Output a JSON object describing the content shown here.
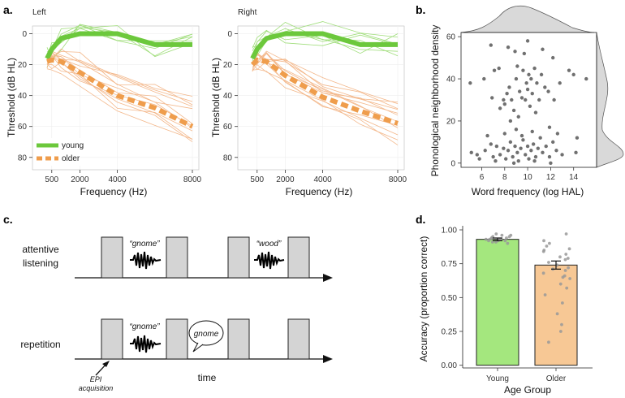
{
  "panels": {
    "a": {
      "letter": "a.",
      "ylabel": "Threshold (dB HL)",
      "xlabel": "Frequency (Hz)",
      "left_title": "Left",
      "right_title": "Right",
      "legend": [
        "young",
        "older"
      ]
    },
    "b": {
      "letter": "b.",
      "ylabel": "Phonological neighborhood density",
      "xlabel": "Word frequency (log HAL)"
    },
    "c": {
      "letter": "c.",
      "attentive_1": "attentive",
      "attentive_2": "listening",
      "repetition": "repetition",
      "word1": "“gnome”",
      "word2": "“wood”",
      "word3": "“gnome”",
      "bubble": "gnome",
      "epi_1": "EPI",
      "epi_2": "acquisition",
      "time": "time"
    },
    "d": {
      "letter": "d.",
      "ylabel": "Accuracy (proportion correct)",
      "xlabel": "Age Group"
    }
  },
  "colors": {
    "young": "#6cc83c",
    "older": "#ef9d4c",
    "young_bar": "#a4e77e",
    "older_bar": "#f7c895"
  },
  "chart_data": [
    {
      "id": "audiogram-left",
      "type": "line",
      "title": "Left",
      "xlabel": "Frequency (Hz)",
      "ylabel": "Threshold (dB HL)",
      "x": [
        250,
        500,
        1000,
        2000,
        4000,
        6000,
        8000
      ],
      "xticks": [
        500,
        2000,
        4000,
        8000
      ],
      "yticks": [
        0,
        20,
        40,
        60,
        80
      ],
      "ylim": [
        -5,
        88
      ],
      "y_inverted": true,
      "series": [
        {
          "name": "young",
          "values": [
            16,
            10,
            3,
            0,
            0,
            7,
            7
          ]
        },
        {
          "name": "older",
          "values": [
            18,
            17,
            18,
            25,
            40,
            48,
            60
          ]
        }
      ]
    },
    {
      "id": "audiogram-right",
      "type": "line",
      "title": "Right",
      "xlabel": "Frequency (Hz)",
      "ylabel": "Threshold (dB HL)",
      "x": [
        250,
        500,
        1000,
        2000,
        4000,
        6000,
        8000
      ],
      "xticks": [
        500,
        2000,
        4000,
        8000
      ],
      "yticks": [
        0,
        20,
        40,
        60,
        80
      ],
      "ylim": [
        -5,
        88
      ],
      "y_inverted": true,
      "series": [
        {
          "name": "young",
          "values": [
            16,
            10,
            3,
            0,
            0,
            7,
            7
          ]
        },
        {
          "name": "older",
          "values": [
            20,
            17,
            18,
            27,
            41,
            50,
            58
          ]
        }
      ]
    },
    {
      "id": "scatter",
      "type": "scatter",
      "xlabel": "Word frequency (log HAL)",
      "ylabel": "Phonological neighborhood density",
      "xticks": [
        6,
        8,
        10,
        12,
        14
      ],
      "yticks": [
        0,
        20,
        40,
        60
      ],
      "xlim": [
        4.2,
        16
      ],
      "ylim": [
        -2,
        62
      ],
      "points": [
        [
          5.0,
          38
        ],
        [
          6.2,
          40
        ],
        [
          6.9,
          31
        ],
        [
          7.1,
          44
        ],
        [
          7.5,
          45
        ],
        [
          7.9,
          30
        ],
        [
          8.0,
          28
        ],
        [
          8.2,
          33
        ],
        [
          8.4,
          36
        ],
        [
          8.6,
          30
        ],
        [
          8.8,
          25
        ],
        [
          9.0,
          40
        ],
        [
          9.1,
          46
        ],
        [
          9.3,
          34
        ],
        [
          9.5,
          31
        ],
        [
          9.6,
          44
        ],
        [
          9.7,
          52
        ],
        [
          9.8,
          30
        ],
        [
          9.9,
          38
        ],
        [
          10.0,
          35
        ],
        [
          10.1,
          42
        ],
        [
          10.2,
          27
        ],
        [
          10.3,
          40
        ],
        [
          10.4,
          33
        ],
        [
          10.6,
          45
        ],
        [
          10.8,
          38
        ],
        [
          11.0,
          30
        ],
        [
          11.2,
          42
        ],
        [
          11.5,
          36
        ],
        [
          11.8,
          34
        ],
        [
          12.3,
          30
        ],
        [
          12.8,
          38
        ],
        [
          14.0,
          42
        ],
        [
          15.1,
          40
        ],
        [
          6.8,
          56
        ],
        [
          8.3,
          55
        ],
        [
          8.9,
          53
        ],
        [
          10.0,
          58
        ],
        [
          11.3,
          54
        ],
        [
          12.2,
          50
        ],
        [
          13.6,
          44
        ],
        [
          7.6,
          26
        ],
        [
          8.5,
          20
        ],
        [
          9.2,
          22
        ],
        [
          10.7,
          24
        ],
        [
          11.9,
          17
        ],
        [
          12.6,
          14
        ],
        [
          14.3,
          12
        ],
        [
          5.1,
          5
        ],
        [
          5.8,
          2
        ],
        [
          6.3,
          6
        ],
        [
          6.8,
          9
        ],
        [
          7.0,
          3
        ],
        [
          7.3,
          8
        ],
        [
          7.6,
          4
        ],
        [
          7.9,
          7
        ],
        [
          8.1,
          2
        ],
        [
          8.3,
          6
        ],
        [
          8.5,
          10
        ],
        [
          8.7,
          3
        ],
        [
          8.9,
          8
        ],
        [
          9.1,
          5
        ],
        [
          9.2,
          1
        ],
        [
          9.4,
          7
        ],
        [
          9.6,
          11
        ],
        [
          9.8,
          4
        ],
        [
          10.0,
          8
        ],
        [
          10.1,
          2
        ],
        [
          10.3,
          6
        ],
        [
          10.5,
          9
        ],
        [
          10.7,
          3
        ],
        [
          10.9,
          7
        ],
        [
          11.1,
          12
        ],
        [
          11.3,
          5
        ],
        [
          11.6,
          8
        ],
        [
          11.9,
          3
        ],
        [
          12.2,
          10
        ],
        [
          12.5,
          6
        ],
        [
          13.0,
          4
        ],
        [
          14.2,
          5
        ],
        [
          6.5,
          13
        ],
        [
          8.0,
          14
        ],
        [
          9.5,
          13
        ],
        [
          10.4,
          15
        ],
        [
          7.2,
          1
        ],
        [
          8.8,
          0
        ],
        [
          10.6,
          1
        ],
        [
          12.0,
          0
        ],
        [
          5.6,
          4
        ],
        [
          9.0,
          16
        ]
      ],
      "marginals": "density curves on top (x) and right (y)"
    },
    {
      "id": "accuracy",
      "type": "bar",
      "xlabel": "Age Group",
      "ylabel": "Accuracy (proportion correct)",
      "categories": [
        "Young",
        "Older"
      ],
      "values": [
        0.93,
        0.74
      ],
      "errors": [
        0.01,
        0.03
      ],
      "yticks": [
        0.0,
        0.25,
        0.5,
        0.75,
        1.0
      ],
      "yticklabels": [
        "0.00",
        "0.25",
        "0.50",
        "0.75",
        "1.00"
      ],
      "ylim": [
        -0.02,
        1.03
      ],
      "individual": [
        [
          0.96,
          0.95,
          0.94,
          0.93,
          0.93,
          0.92,
          0.92,
          0.91,
          0.94,
          0.95,
          0.93,
          0.9,
          0.96,
          0.92,
          0.94,
          0.97,
          0.91,
          0.93
        ],
        [
          0.97,
          0.92,
          0.9,
          0.88,
          0.86,
          0.84,
          0.82,
          0.8,
          0.78,
          0.76,
          0.74,
          0.72,
          0.7,
          0.68,
          0.66,
          0.64,
          0.6,
          0.57,
          0.52,
          0.46,
          0.38,
          0.3,
          0.25,
          0.17,
          0.85,
          0.79,
          0.71,
          0.65
        ]
      ]
    }
  ]
}
